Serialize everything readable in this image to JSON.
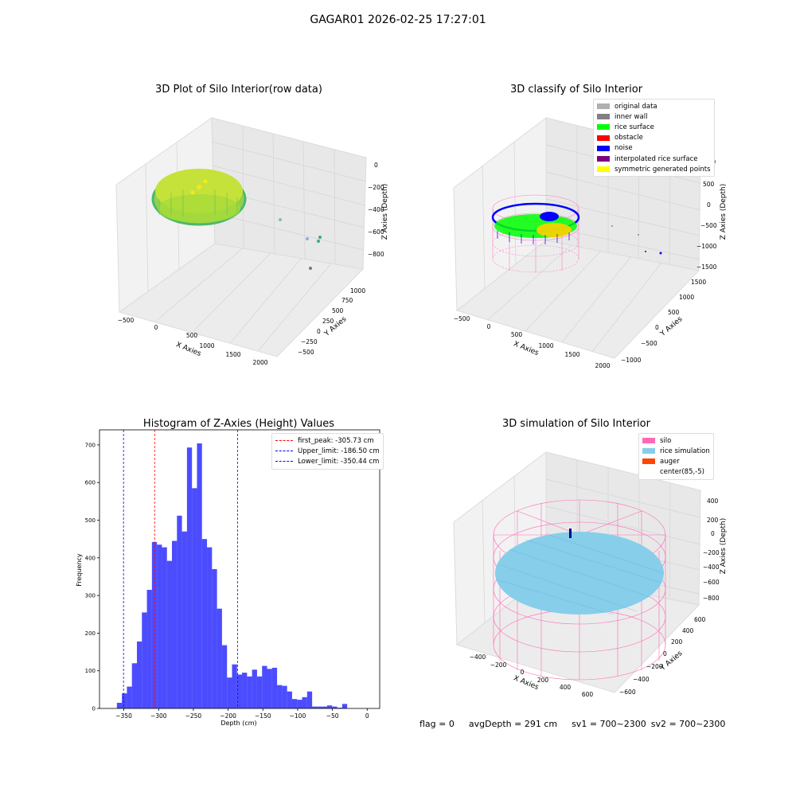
{
  "suptitle": "GAGAR01 2026-02-25 17:27:01",
  "panels": {
    "raw": {
      "title": "3D Plot of Silo Interior(row data)",
      "xlabel": "X Axies",
      "ylabel": "Y Axies",
      "zlabel": "Z Axies (Depth)",
      "xticks": [
        "−500",
        "0",
        "500",
        "1000",
        "1500",
        "2000"
      ],
      "yticks": [
        "−500",
        "−250",
        "0",
        "250",
        "500",
        "750",
        "1000"
      ],
      "zticks": [
        "0",
        "−200",
        "−400",
        "−600",
        "−800"
      ]
    },
    "classify": {
      "title": "3D classify of Silo Interior",
      "xlabel": "X Axies",
      "ylabel": "Y Axies",
      "zlabel": "Z Axies (Depth)",
      "xticks": [
        "−500",
        "0",
        "500",
        "1000",
        "1500",
        "2000"
      ],
      "yticks": [
        "−1000",
        "−500",
        "0",
        "500",
        "1000",
        "1500"
      ],
      "zticks": [
        "1000",
        "500",
        "0",
        "−500",
        "−1000",
        "−1500"
      ],
      "legend": [
        {
          "label": "original data",
          "color": "#b0b0b0"
        },
        {
          "label": "inner wall",
          "color": "#808080"
        },
        {
          "label": "rice surface",
          "color": "#00ff00"
        },
        {
          "label": "obstacle",
          "color": "#ff0000"
        },
        {
          "label": "noise",
          "color": "#0000ff"
        },
        {
          "label": "interpolated rice surface",
          "color": "#800080"
        },
        {
          "label": "symmetric generated points",
          "color": "#ffff00"
        }
      ]
    },
    "simulation": {
      "title": "3D simulation of Silo Interior",
      "xlabel": "X Axies",
      "ylabel": "Y Axies",
      "zlabel": "Z Axies (Depth)",
      "xticks": [
        "−400",
        "−200",
        "0",
        "200",
        "400",
        "600"
      ],
      "yticks": [
        "−600",
        "−400",
        "−200",
        "0",
        "200",
        "400",
        "600"
      ],
      "zticks": [
        "400",
        "200",
        "0",
        "−200",
        "−400",
        "−600",
        "−800"
      ],
      "legend": [
        {
          "label": "silo",
          "color": "#ff69b4"
        },
        {
          "label": "rice simulation",
          "color": "#87ceeb"
        },
        {
          "label": "auger",
          "color": "#ff4500"
        },
        {
          "label": "center(85,-5)",
          "color": "#ffffff"
        }
      ]
    }
  },
  "footer": {
    "flag": "flag = 0",
    "avg": "avgDepth = 291 cm",
    "sv1": "sv1 = 700~2300",
    "sv2": "sv2 = 700~2300"
  },
  "chart_data": {
    "type": "bar",
    "title": "Histogram of Z-Axies (Height) Values",
    "xlabel": "Depth (cm)",
    "ylabel": "Frequency",
    "xlim": [
      -385,
      18
    ],
    "ylim": [
      0,
      740
    ],
    "xticks": [
      -350,
      -300,
      -250,
      -200,
      -150,
      -100,
      -50,
      0
    ],
    "yticks": [
      0,
      100,
      200,
      300,
      400,
      500,
      600,
      700
    ],
    "bin_start": -360,
    "bin_width": 7.2,
    "values": [
      15,
      40,
      58,
      120,
      178,
      255,
      315,
      442,
      435,
      428,
      392,
      445,
      512,
      470,
      693,
      585,
      704,
      450,
      428,
      370,
      265,
      168,
      82,
      117,
      90,
      95,
      85,
      103,
      85,
      113,
      105,
      108,
      62,
      60,
      45,
      25,
      23,
      30,
      45,
      5,
      5,
      5,
      8,
      5,
      2,
      12
    ],
    "colors": {
      "bar": "#0000ff",
      "bar_opacity": 0.7
    },
    "vlines": [
      {
        "x": -305.73,
        "color": "#ff0000",
        "label": "first_peak: -305.73 cm"
      },
      {
        "x": -186.5,
        "color": "#0000ff",
        "label": "Upper_limit: -186.50 cm"
      },
      {
        "x": -350.44,
        "color": "#0000ff",
        "label": "Lower_limit: -350.44 cm"
      }
    ],
    "legend_position": "upper right"
  }
}
